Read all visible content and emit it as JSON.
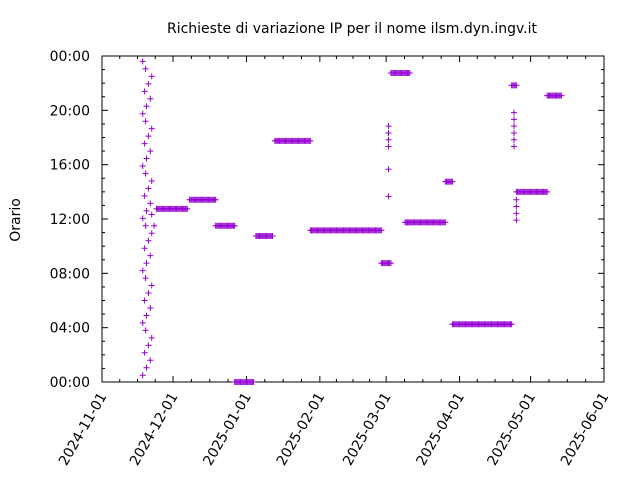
{
  "chart_data": {
    "type": "scatter",
    "title": "Richieste di variazione IP per il nome ilsm.dyn.ingv.it",
    "xlabel": "",
    "ylabel": "Orario",
    "marker": "+",
    "colors": {
      "points": "#9400d3",
      "axes": "#000000"
    },
    "grid": false,
    "legend": "none",
    "xlim": [
      "2024-11-01",
      "2025-06-01"
    ],
    "ylim": [
      "00:00",
      "24:00"
    ],
    "x_ticks": [
      "2024-11-01",
      "2024-12-01",
      "2025-01-01",
      "2025-02-01",
      "2025-03-01",
      "2025-04-01",
      "2025-05-01",
      "2025-06-01"
    ],
    "y_ticks": [
      "00:00",
      "04:00",
      "08:00",
      "12:00",
      "16:00",
      "20:00",
      "00:00"
    ],
    "runs": [
      {
        "x_start": "2024-11-22",
        "x_end": "2024-11-22",
        "time": "12:20"
      },
      {
        "x_start": "2024-11-23",
        "x_end": "2024-11-23",
        "time": "11:30"
      },
      {
        "x_start": "2024-11-24",
        "x_end": "2024-12-07",
        "time": "12:45"
      },
      {
        "x_start": "2024-12-08",
        "x_end": "2024-12-19",
        "time": "13:25"
      },
      {
        "x_start": "2024-12-19",
        "x_end": "2024-12-27",
        "time": "11:30"
      },
      {
        "x_start": "2024-12-27",
        "x_end": "2025-01-04",
        "time": "00:00"
      },
      {
        "x_start": "2025-01-05",
        "x_end": "2025-01-12",
        "time": "10:45"
      },
      {
        "x_start": "2025-01-13",
        "x_end": "2025-01-28",
        "time": "17:45"
      },
      {
        "x_start": "2025-01-28",
        "x_end": "2025-02-27",
        "time": "11:10"
      },
      {
        "x_start": "2025-02-27",
        "x_end": "2025-03-03",
        "time": "08:45"
      },
      {
        "x_start": "2025-03-03",
        "x_end": "2025-03-11",
        "time": "22:45"
      },
      {
        "x_start": "2025-03-09",
        "x_end": "2025-03-26",
        "time": "11:45"
      },
      {
        "x_start": "2025-03-26",
        "x_end": "2025-03-29",
        "time": "14:45"
      },
      {
        "x_start": "2025-03-29",
        "x_end": "2025-04-23",
        "time": "04:15"
      },
      {
        "x_start": "2025-04-23",
        "x_end": "2025-04-25",
        "time": "21:50"
      },
      {
        "x_start": "2025-04-25",
        "x_end": "2025-05-08",
        "time": "14:00"
      },
      {
        "x_start": "2025-05-08",
        "x_end": "2025-05-14",
        "time": "21:05"
      }
    ],
    "single_points": [
      {
        "x": "2025-03-02",
        "times": [
          "13:40",
          "15:40",
          "17:20",
          "17:50",
          "18:20",
          "18:50"
        ]
      },
      {
        "x": "2025-04-24",
        "times": [
          "17:20",
          "17:50",
          "18:20",
          "18:50",
          "19:20",
          "19:50"
        ]
      },
      {
        "x": "2025-04-25",
        "times": [
          "11:55",
          "12:25",
          "12:55",
          "13:25"
        ]
      }
    ],
    "cluster": {
      "x_start": "2024-11-18",
      "x_end": "2024-11-22",
      "time_start": "00:30",
      "time_end": "23:55"
    }
  }
}
